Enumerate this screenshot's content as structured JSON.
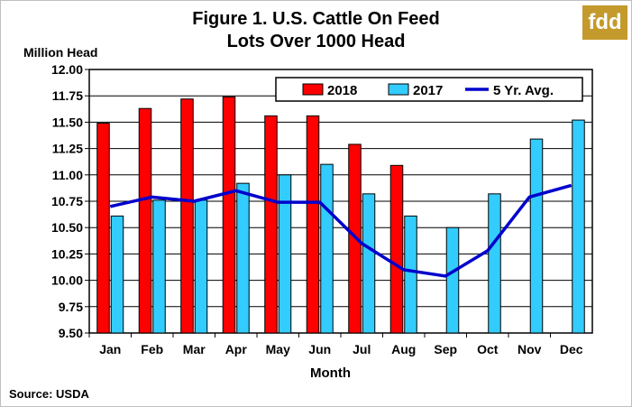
{
  "logo": "fdd",
  "source": "Source:  USDA",
  "chart_data": {
    "type": "bar",
    "title": "Figure 1. U.S. Cattle On Feed",
    "subtitle": "Lots Over 1000 Head",
    "ylabel": "Million Head",
    "xlabel": "Month",
    "ylim": [
      9.5,
      12.0
    ],
    "yticks": [
      "12.00",
      "11.75",
      "11.50",
      "11.25",
      "11.00",
      "10.75",
      "10.50",
      "10.25",
      "10.00",
      "9.75",
      "9.50"
    ],
    "categories": [
      "Jan",
      "Feb",
      "Mar",
      "Apr",
      "May",
      "Jun",
      "Jul",
      "Aug",
      "Sep",
      "Oct",
      "Nov",
      "Dec"
    ],
    "series": [
      {
        "name": "2018",
        "type": "bar",
        "color": "#ff0000",
        "values": [
          11.49,
          11.63,
          11.72,
          11.74,
          11.56,
          11.56,
          11.29,
          11.09,
          null,
          null,
          null,
          null
        ]
      },
      {
        "name": "2017",
        "type": "bar",
        "color": "#33ccff",
        "values": [
          10.61,
          10.76,
          10.76,
          10.92,
          11.0,
          11.1,
          10.82,
          10.61,
          10.5,
          10.82,
          11.34,
          11.52
        ]
      },
      {
        "name": "5 Yr. Avg.",
        "type": "line",
        "color": "#0000cc",
        "values": [
          10.7,
          10.79,
          10.75,
          10.85,
          10.74,
          10.74,
          10.35,
          10.1,
          10.04,
          10.28,
          10.79,
          10.9
        ]
      }
    ],
    "grid": true,
    "legend_position": "top-right"
  }
}
